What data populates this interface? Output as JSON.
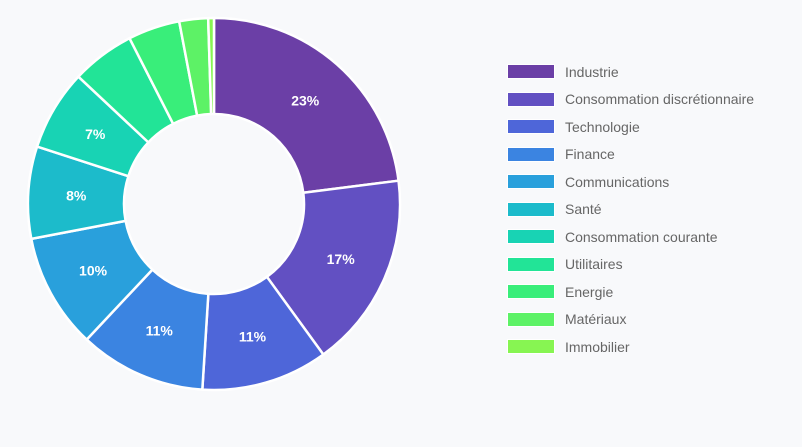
{
  "chart_data": {
    "type": "pie",
    "variant": "doughnut",
    "title": "",
    "legend_position": "right",
    "categories": [
      "Industrie",
      "Consommation discrétionnaire",
      "Technologie",
      "Finance",
      "Communications",
      "Santé",
      "Consommation courante",
      "Utilitaires",
      "Energie",
      "Matériaux",
      "Immobilier"
    ],
    "values": [
      23,
      17,
      11,
      11,
      10,
      8,
      7,
      5.5,
      4.5,
      2.5,
      0.5
    ],
    "data_labels": [
      "23%",
      "17%",
      "11%",
      "11%",
      "10%",
      "8%",
      "7%",
      "",
      "",
      "",
      ""
    ],
    "colors": [
      "#6B3FA6",
      "#6250C2",
      "#4E66D9",
      "#3B84E1",
      "#29A0DC",
      "#1CBBCB",
      "#18D3B4",
      "#22E497",
      "#39EE7A",
      "#5DF266",
      "#87F552"
    ]
  }
}
